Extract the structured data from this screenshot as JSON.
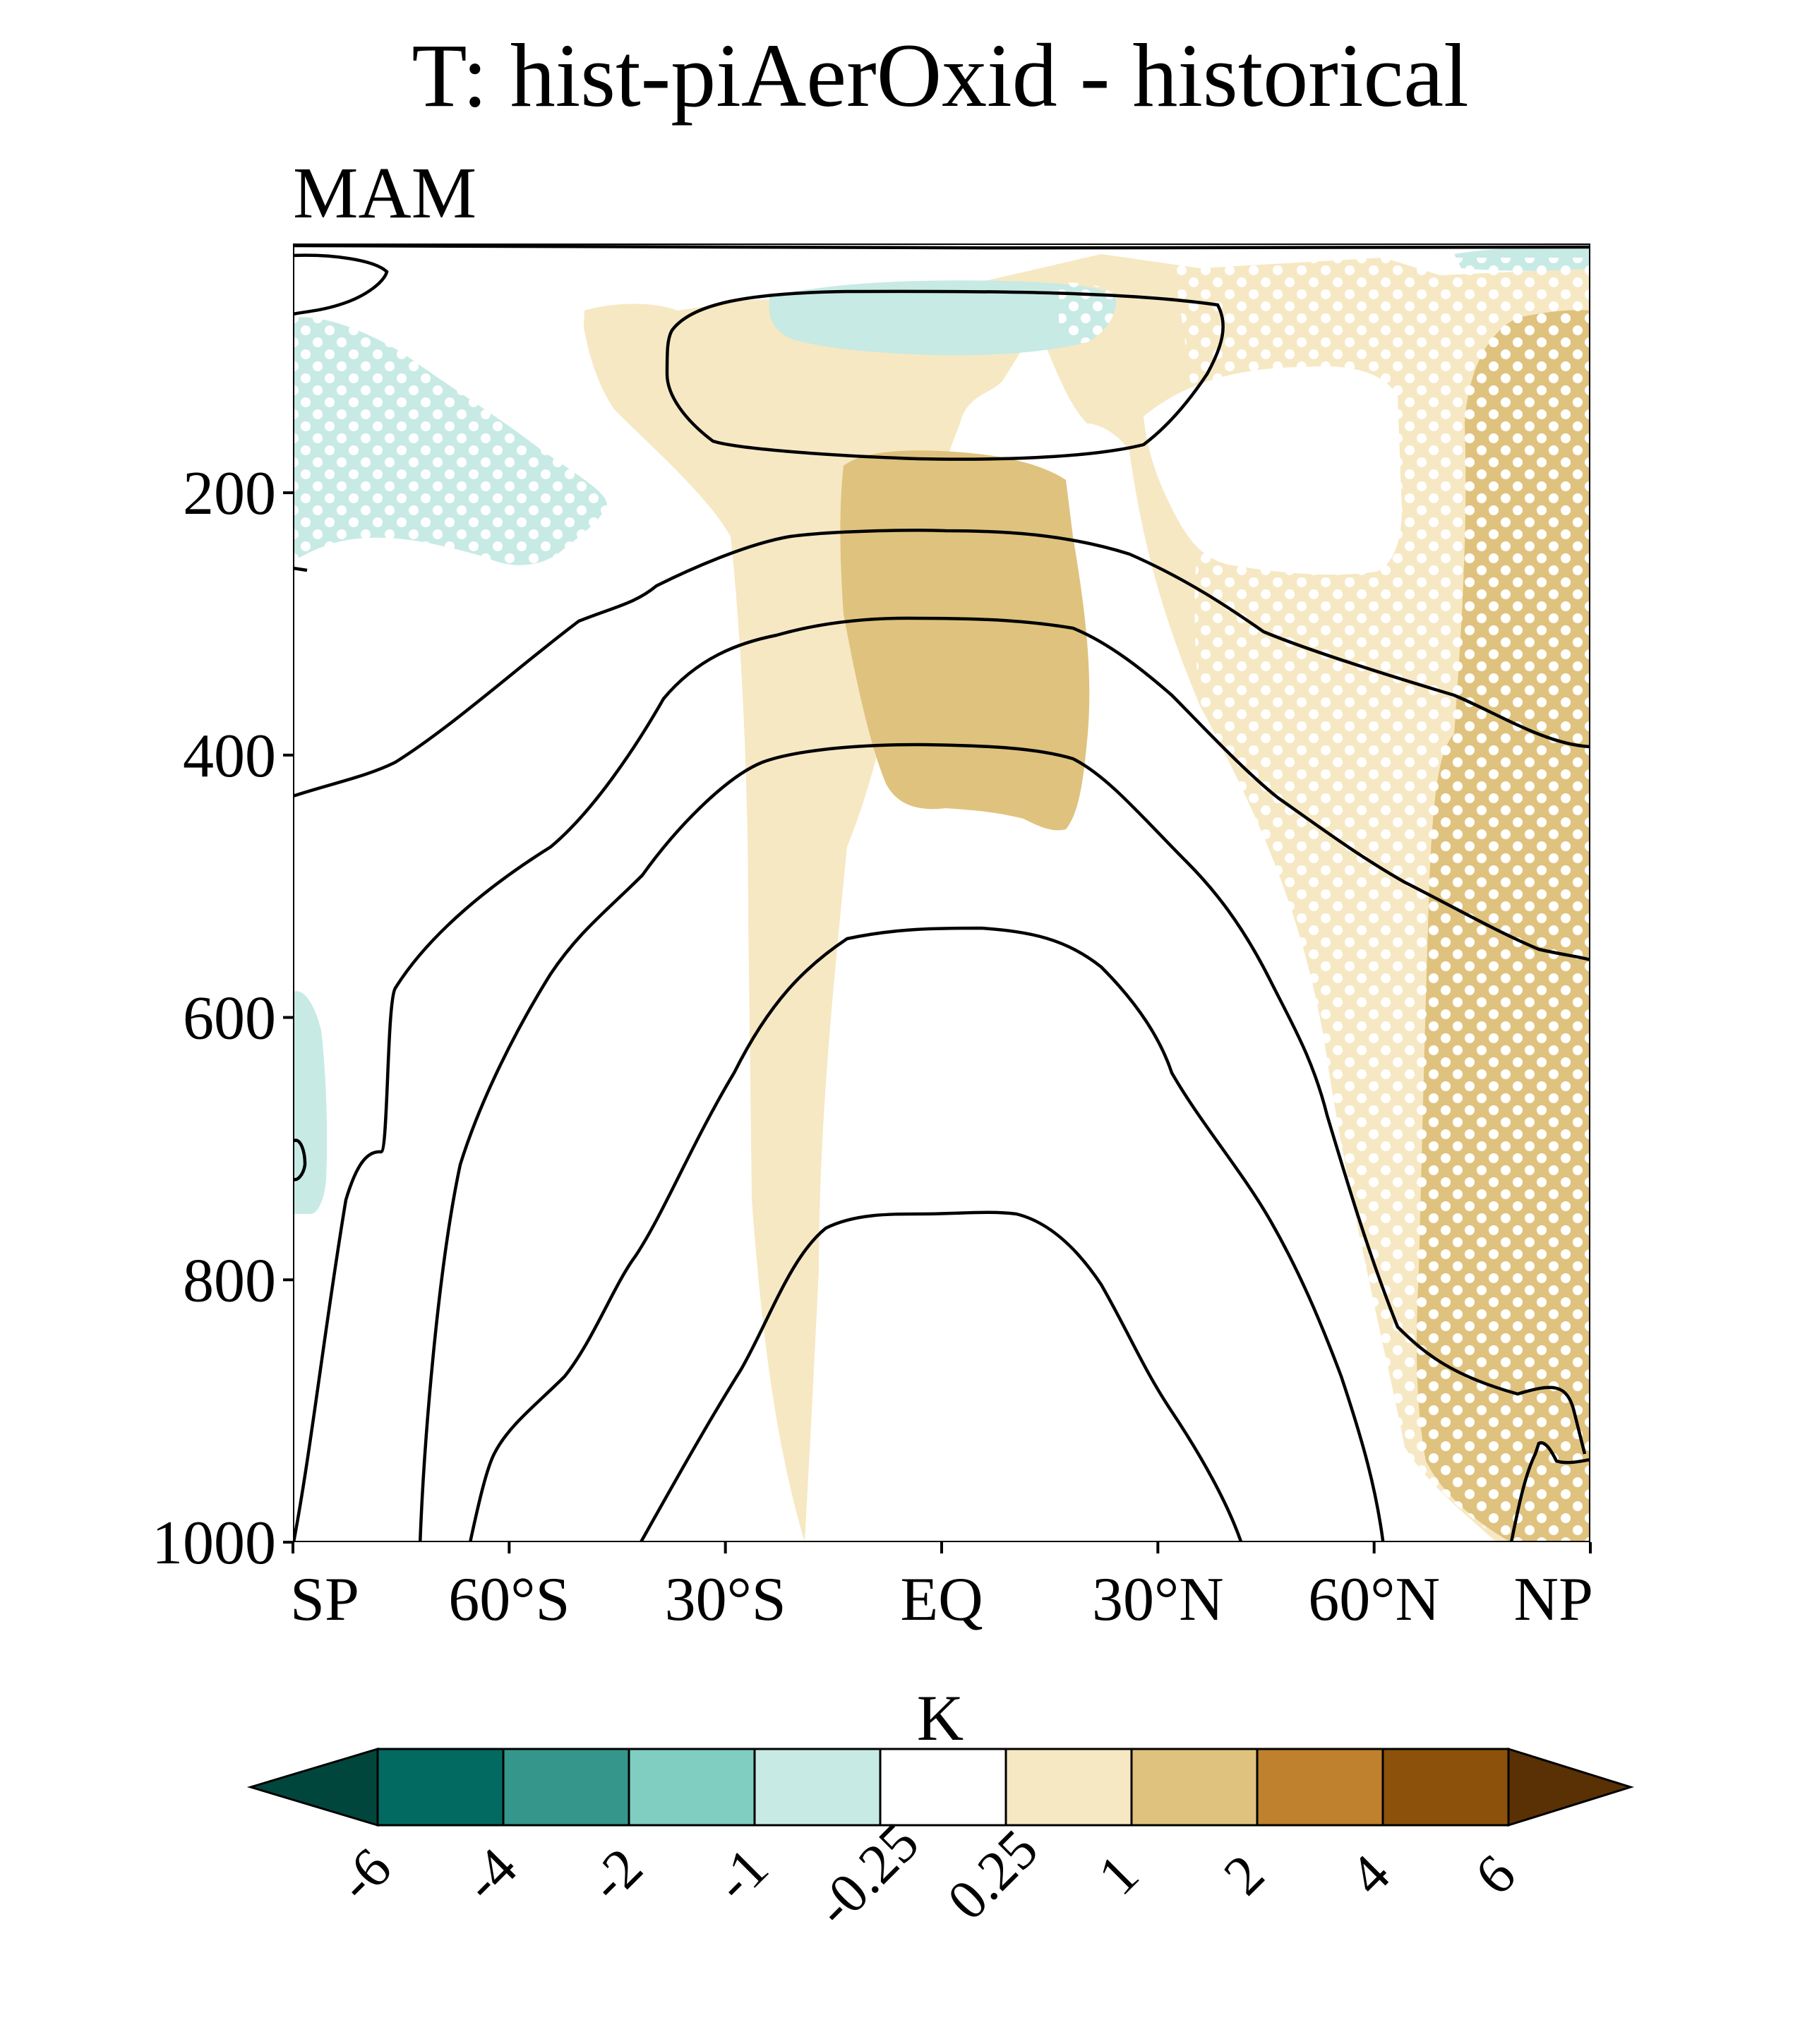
{
  "chart_data": {
    "type": "heatmap",
    "title": "T: hist-piAerOxid - historical",
    "subtitle": "MAM",
    "xlabel": "",
    "ylabel": "",
    "x_tick_labels": [
      "SP",
      "60°S",
      "30°S",
      "EQ",
      "30°N",
      "60°N",
      "NP"
    ],
    "x_ticks": [
      -90,
      -60,
      -30,
      0,
      30,
      60,
      90
    ],
    "xlim": [
      -90,
      90
    ],
    "y_tick_labels": [
      "200",
      "400",
      "600",
      "800",
      "1000"
    ],
    "y_ticks": [
      200,
      400,
      600,
      800,
      1000
    ],
    "ylim": [
      1000,
      10
    ],
    "y_inverted": true,
    "colorbar": {
      "label": "K",
      "levels": [
        "-6",
        "-4",
        "-2",
        "-1",
        "-0.25",
        "0.25",
        "1",
        "2",
        "4",
        "6"
      ],
      "colors": [
        "#01463c",
        "#026a61",
        "#35968c",
        "#80cdc1",
        "#c7eae5",
        "#ffffff",
        "#f6e8c3",
        "#dfc27d",
        "#bf812d",
        "#8c510a",
        "#5a3005"
      ],
      "extend": "both"
    },
    "filled_regions": [
      {
        "value_range": "0.25 to 1",
        "color": "#f6e8c3",
        "location": "tropics 40°S-40°N, 1000-40 hPa; high northern latitudes"
      },
      {
        "value_range": "1 to 2",
        "color": "#dfc27d",
        "location": "equatorial upper troposphere 170-450 hPa; 65°N-NP surface to 60 hPa"
      },
      {
        "value_range": "-1 to -0.25",
        "color": "#c7eae5",
        "location": "80°S-60°S 60-250 hPa; equatorial 40-80 hPa; SP lower troposphere"
      }
    ],
    "contours": "historical climatological temperature, black lines",
    "stippling": "significance dots in white",
    "grid": false
  }
}
